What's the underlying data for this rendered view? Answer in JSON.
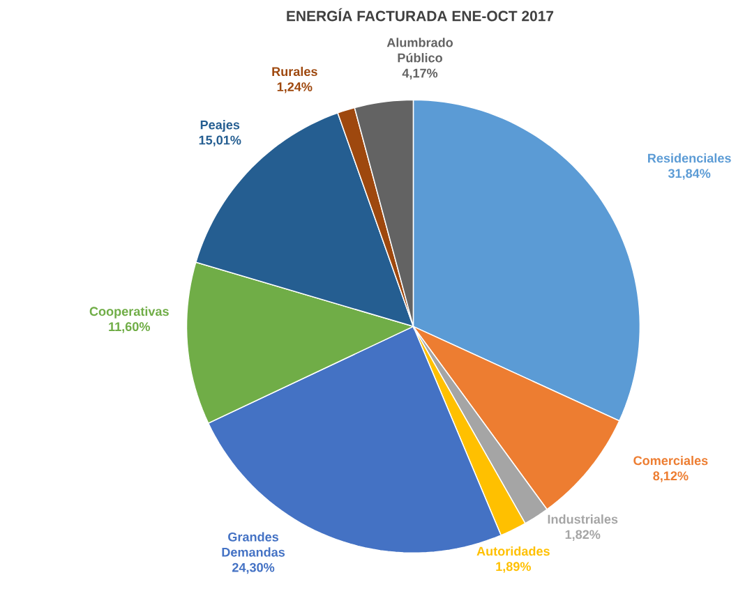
{
  "chart_data": {
    "type": "pie",
    "title": "ENERGÍA FACTURADA ENE-OCT 2017",
    "categories": [
      "Residenciales",
      "Comerciales",
      "Industriales",
      "Autoridades",
      "Grandes Demandas",
      "Cooperativas",
      "Peajes",
      "Rurales",
      "Alumbrado Público"
    ],
    "values": [
      31.84,
      8.12,
      1.82,
      1.89,
      24.3,
      11.6,
      15.01,
      1.24,
      4.17
    ],
    "value_labels": [
      "31,84%",
      "8,12%",
      "1,82%",
      "1,89%",
      "24,30%",
      "11,60%",
      "15,01%",
      "1,24%",
      "4,17%"
    ],
    "colors": [
      "#5b9bd5",
      "#ed7d31",
      "#a5a5a5",
      "#ffc000",
      "#4472c4",
      "#70ad47",
      "#255e91",
      "#9e480e",
      "#636363"
    ]
  }
}
